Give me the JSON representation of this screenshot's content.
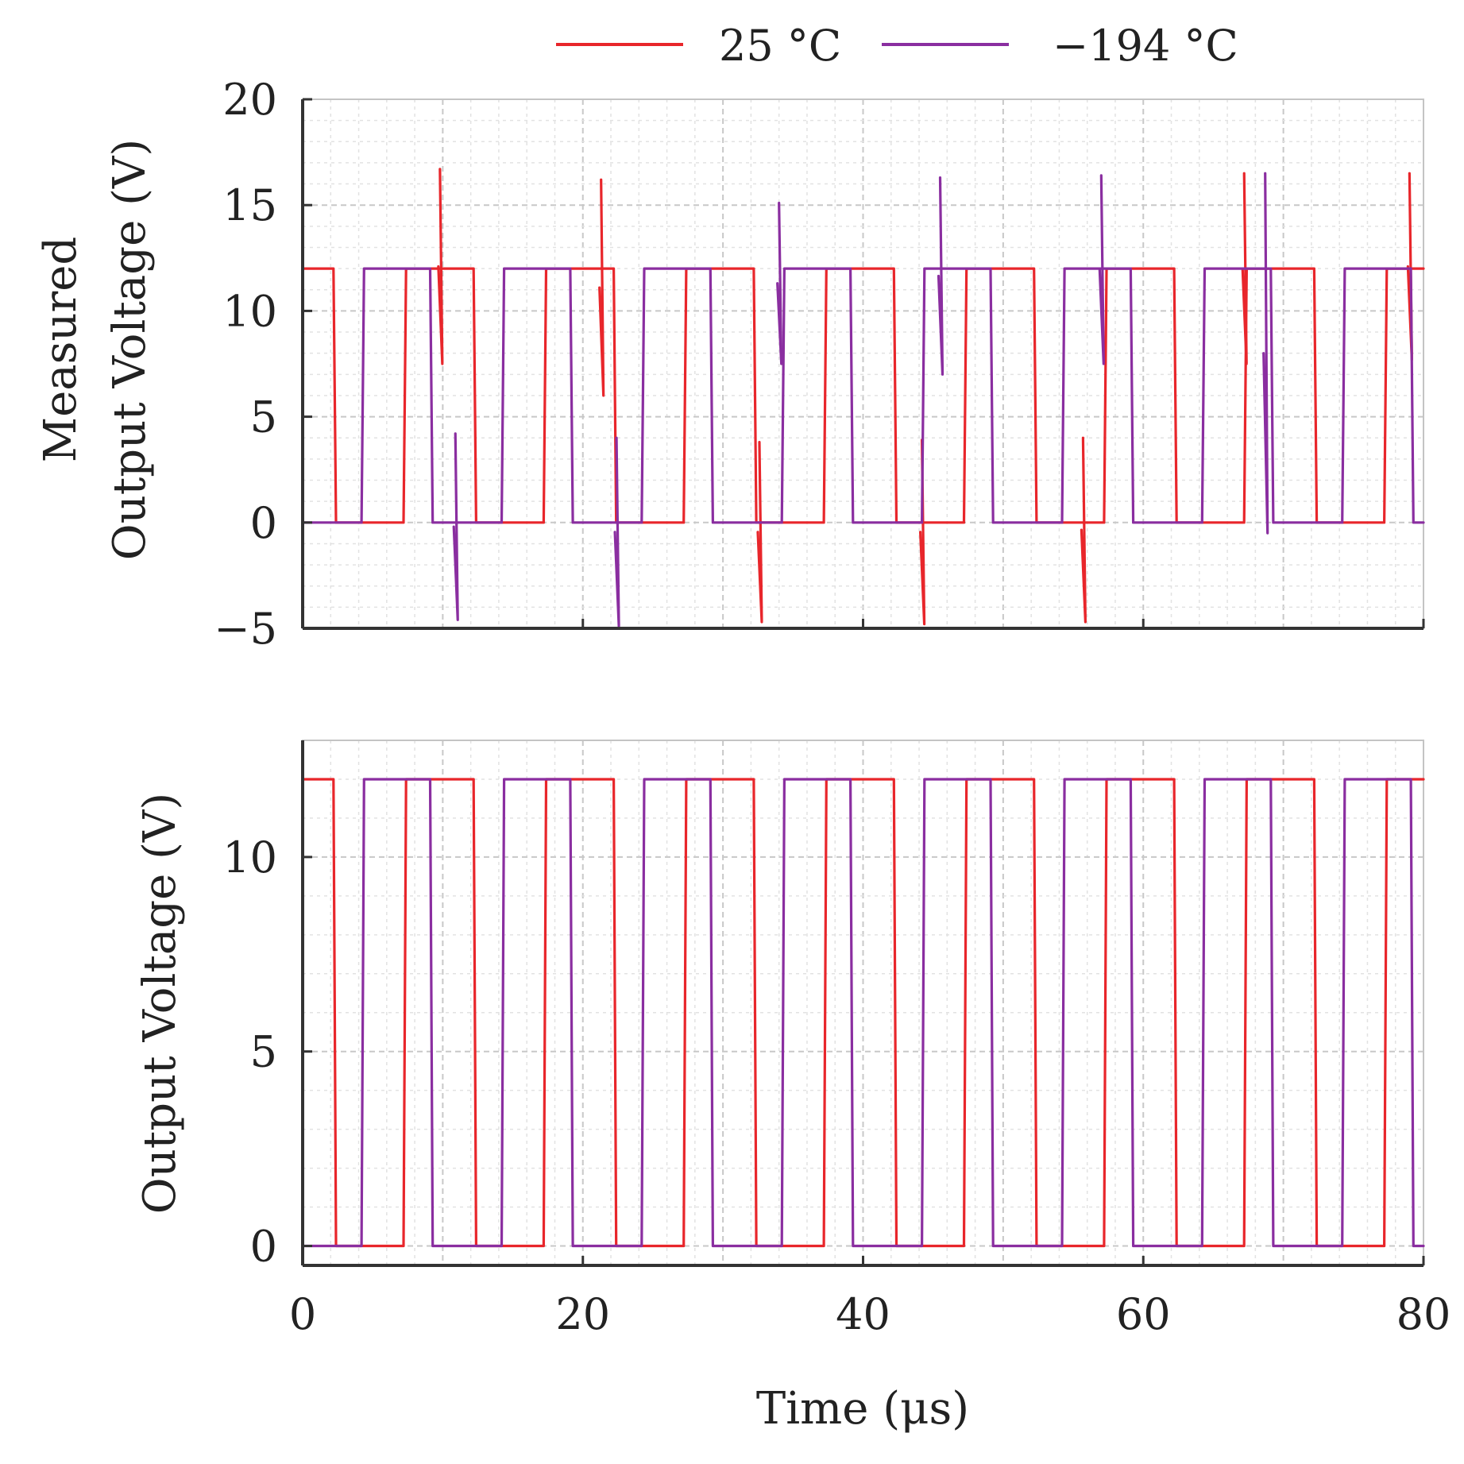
{
  "chart_data": [
    {
      "type": "line",
      "id": "top",
      "title": "",
      "xlabel": "",
      "ylabel_lines": [
        "Measured",
        "Output Voltage (V)"
      ],
      "xlim": [
        0,
        80
      ],
      "ylim": [
        -5,
        20
      ],
      "x_ticks": [
        0,
        20,
        40,
        60,
        80
      ],
      "x_tick_labels": [],
      "y_ticks": [
        -5,
        0,
        5,
        10,
        15,
        20
      ],
      "y_tick_labels": [
        "−5",
        "0",
        "5",
        "10",
        "15",
        "20"
      ],
      "grid": true,
      "series": [
        {
          "name": "25 °C",
          "color": "#e8262b",
          "period_us": 10,
          "phase_us": 2.2,
          "high_duration_us": 5,
          "high_V": 12,
          "low_V": 0,
          "spikes": [
            {
              "t": 9.8,
              "min": 7.5,
              "max": 16.7
            },
            {
              "t": 21.3,
              "min": 6.0,
              "max": 16.2
            },
            {
              "t": 32.6,
              "min": -4.7,
              "max": 3.8
            },
            {
              "t": 44.2,
              "min": -4.8,
              "max": 3.9
            },
            {
              "t": 55.7,
              "min": -4.7,
              "max": 4.0
            },
            {
              "t": 67.2,
              "min": 7.5,
              "max": 16.5
            },
            {
              "t": 79.0,
              "min": 7.7,
              "max": 16.5
            }
          ]
        },
        {
          "name": "−194 °C",
          "color": "#8a2ea0",
          "period_us": 10,
          "phase_us": 4.2,
          "high_duration_us": 4.9,
          "high_V": 12,
          "low_V": 0,
          "spikes": [
            {
              "t": 10.9,
              "min": -4.6,
              "max": 4.2
            },
            {
              "t": 22.4,
              "min": -4.9,
              "max": 4.0
            },
            {
              "t": 34.0,
              "min": 7.5,
              "max": 15.1
            },
            {
              "t": 45.5,
              "min": 7.0,
              "max": 16.3
            },
            {
              "t": 57.0,
              "min": 7.5,
              "max": 16.4
            },
            {
              "t": 68.7,
              "min": -0.5,
              "max": 16.5
            }
          ]
        }
      ]
    },
    {
      "type": "line",
      "id": "bottom",
      "title": "",
      "xlabel": "Time (μs)",
      "ylabel_lines": [
        "Output Voltage (V)"
      ],
      "xlim": [
        0,
        80
      ],
      "ylim": [
        -0.5,
        13
      ],
      "x_ticks": [
        0,
        20,
        40,
        60,
        80
      ],
      "x_tick_labels": [
        "0",
        "20",
        "40",
        "60",
        "80"
      ],
      "y_ticks": [
        0,
        5,
        10
      ],
      "y_tick_labels": [
        "0",
        "5",
        "10"
      ],
      "grid": true,
      "series": [
        {
          "name": "25 °C",
          "color": "#e8262b",
          "period_us": 10,
          "phase_us": 2.2,
          "high_duration_us": 5,
          "high_V": 12,
          "low_V": 0,
          "spikes": []
        },
        {
          "name": "−194 °C",
          "color": "#8a2ea0",
          "period_us": 10,
          "phase_us": 4.2,
          "high_duration_us": 4.9,
          "high_V": 12,
          "low_V": 0,
          "spikes": []
        }
      ]
    }
  ],
  "legend": {
    "entries": [
      {
        "label": "25 °C",
        "color": "#e8262b"
      },
      {
        "label": "−194 °C",
        "color": "#8a2ea0"
      }
    ],
    "placement": "top"
  }
}
